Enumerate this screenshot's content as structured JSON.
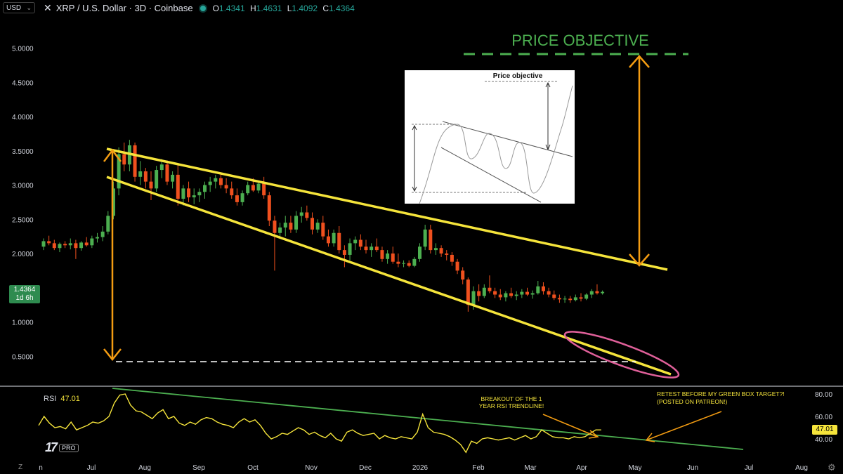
{
  "header": {
    "currency_label": "USD",
    "symbol_title": "XRP / U.S. Dollar · 3D · Coinbase",
    "ohlc": [
      {
        "k": "O",
        "v": "1.4341"
      },
      {
        "k": "H",
        "v": "1.4631"
      },
      {
        "k": "L",
        "v": "1.4092"
      },
      {
        "k": "C",
        "v": "1.4364"
      }
    ]
  },
  "price_tag": {
    "price": "1.4364",
    "countdown": "1d 6h"
  },
  "rsi": {
    "label": "RSI",
    "value": "47.01",
    "tag": "47.01"
  },
  "branding": {
    "pro_label": "PRO"
  },
  "colors": {
    "bull": "#26a69a",
    "bull_candle": "#4caf50",
    "bear_candle": "#f0501e",
    "wedge": "#f5e43b",
    "arrow": "#f39c12",
    "objective": "#4caf50",
    "ellipse": "#e0609a",
    "rsi_line": "#f5e43b",
    "rsi_trend": "#4caf50"
  },
  "chart_data": {
    "type": "candlestick",
    "title": "XRP / U.S. Dollar · 3D · Coinbase",
    "ylim": [
      0.3,
      5.4
    ],
    "y_ticks": [
      "5.0000",
      "4.5000",
      "4.0000",
      "3.5000",
      "3.0000",
      "2.5000",
      "2.0000",
      "1.0000",
      "0.5000"
    ],
    "y_tick_values": [
      5.0,
      4.5,
      4.0,
      3.5,
      3.0,
      2.5,
      2.0,
      1.0,
      0.5
    ],
    "x_ticks": [
      "n",
      "Jul",
      "Aug",
      "Sep",
      "Oct",
      "Nov",
      "Dec",
      "2026",
      "Feb",
      "Mar",
      "Apr",
      "May",
      "Jun",
      "Jul",
      "Aug"
    ],
    "candles": [
      [
        2.1,
        2.22,
        2.05,
        2.18
      ],
      [
        2.18,
        2.26,
        2.12,
        2.15
      ],
      [
        2.15,
        2.2,
        2.05,
        2.08
      ],
      [
        2.08,
        2.16,
        2.02,
        2.14
      ],
      [
        2.14,
        2.18,
        2.08,
        2.12
      ],
      [
        2.12,
        2.22,
        2.06,
        2.15
      ],
      [
        2.15,
        2.2,
        1.92,
        2.08
      ],
      [
        2.08,
        2.18,
        2.04,
        2.16
      ],
      [
        2.16,
        2.24,
        2.1,
        2.12
      ],
      [
        2.12,
        2.26,
        2.08,
        2.22
      ],
      [
        2.22,
        2.3,
        2.16,
        2.24
      ],
      [
        2.24,
        2.4,
        2.18,
        2.32
      ],
      [
        2.32,
        2.62,
        2.28,
        2.55
      ],
      [
        2.55,
        3.05,
        2.5,
        2.95
      ],
      [
        2.95,
        3.55,
        2.85,
        3.45
      ],
      [
        3.45,
        3.62,
        3.2,
        3.3
      ],
      [
        3.3,
        3.66,
        3.2,
        3.58
      ],
      [
        3.58,
        3.62,
        3.05,
        3.12
      ],
      [
        3.12,
        3.35,
        3.0,
        3.2
      ],
      [
        3.2,
        3.25,
        2.95,
        3.05
      ],
      [
        3.05,
        3.2,
        2.78,
        2.95
      ],
      [
        2.95,
        3.28,
        2.9,
        3.22
      ],
      [
        3.22,
        3.38,
        3.1,
        3.3
      ],
      [
        3.3,
        3.36,
        3.0,
        3.05
      ],
      [
        3.05,
        3.2,
        2.95,
        3.15
      ],
      [
        3.15,
        3.3,
        2.7,
        2.8
      ],
      [
        2.8,
        3.0,
        2.7,
        2.95
      ],
      [
        2.95,
        3.05,
        2.75,
        2.82
      ],
      [
        2.82,
        2.95,
        2.72,
        2.85
      ],
      [
        2.85,
        2.95,
        2.75,
        2.9
      ],
      [
        2.9,
        3.05,
        2.8,
        3.0
      ],
      [
        3.0,
        3.12,
        2.9,
        3.05
      ],
      [
        3.05,
        3.15,
        2.95,
        3.1
      ],
      [
        3.1,
        3.18,
        2.95,
        3.0
      ],
      [
        3.0,
        3.1,
        2.88,
        2.95
      ],
      [
        2.95,
        3.05,
        2.8,
        2.85
      ],
      [
        2.85,
        2.95,
        2.7,
        2.75
      ],
      [
        2.75,
        2.92,
        2.7,
        2.88
      ],
      [
        2.88,
        3.05,
        2.85,
        3.0
      ],
      [
        3.0,
        3.1,
        2.9,
        2.92
      ],
      [
        2.92,
        3.05,
        2.88,
        3.02
      ],
      [
        3.02,
        3.12,
        2.8,
        2.85
      ],
      [
        2.85,
        2.9,
        2.4,
        2.48
      ],
      [
        2.48,
        2.55,
        1.75,
        2.3
      ],
      [
        2.3,
        2.45,
        2.25,
        2.38
      ],
      [
        2.38,
        2.55,
        2.25,
        2.45
      ],
      [
        2.45,
        2.55,
        2.3,
        2.35
      ],
      [
        2.35,
        2.62,
        2.3,
        2.55
      ],
      [
        2.55,
        2.68,
        2.45,
        2.6
      ],
      [
        2.6,
        2.7,
        2.48,
        2.52
      ],
      [
        2.52,
        2.6,
        2.28,
        2.35
      ],
      [
        2.35,
        2.5,
        2.3,
        2.45
      ],
      [
        2.45,
        2.55,
        2.2,
        2.25
      ],
      [
        2.25,
        2.35,
        2.1,
        2.15
      ],
      [
        2.15,
        2.35,
        2.1,
        2.3
      ],
      [
        2.3,
        2.4,
        2.0,
        2.05
      ],
      [
        2.05,
        2.12,
        1.8,
        1.98
      ],
      [
        1.98,
        2.22,
        1.9,
        2.15
      ],
      [
        2.15,
        2.25,
        2.05,
        2.2
      ],
      [
        2.2,
        2.28,
        2.05,
        2.1
      ],
      [
        2.1,
        2.2,
        2.0,
        2.05
      ],
      [
        2.05,
        2.15,
        1.95,
        2.1
      ],
      [
        2.1,
        2.22,
        2.02,
        2.05
      ],
      [
        2.05,
        2.1,
        1.88,
        1.92
      ],
      [
        1.92,
        2.05,
        1.85,
        2.0
      ],
      [
        2.0,
        2.1,
        1.85,
        1.88
      ],
      [
        1.88,
        2.0,
        1.8,
        1.85
      ],
      [
        1.85,
        1.9,
        1.8,
        1.86
      ],
      [
        1.86,
        1.9,
        1.8,
        1.82
      ],
      [
        1.82,
        1.95,
        1.8,
        1.92
      ],
      [
        1.92,
        2.15,
        1.88,
        2.1
      ],
      [
        2.1,
        2.42,
        2.05,
        2.35
      ],
      [
        2.35,
        2.42,
        2.0,
        2.05
      ],
      [
        2.05,
        2.15,
        1.98,
        2.08
      ],
      [
        2.08,
        2.12,
        1.95,
        2.0
      ],
      [
        2.0,
        2.05,
        1.9,
        1.98
      ],
      [
        1.98,
        2.02,
        1.82,
        1.88
      ],
      [
        1.88,
        1.92,
        1.7,
        1.75
      ],
      [
        1.75,
        1.8,
        1.55,
        1.62
      ],
      [
        1.62,
        1.65,
        1.15,
        1.25
      ],
      [
        1.25,
        1.52,
        1.18,
        1.45
      ],
      [
        1.45,
        1.55,
        1.3,
        1.38
      ],
      [
        1.38,
        1.55,
        1.35,
        1.5
      ],
      [
        1.5,
        1.68,
        1.42,
        1.45
      ],
      [
        1.45,
        1.5,
        1.35,
        1.4
      ],
      [
        1.4,
        1.48,
        1.32,
        1.36
      ],
      [
        1.36,
        1.45,
        1.3,
        1.42
      ],
      [
        1.42,
        1.5,
        1.35,
        1.38
      ],
      [
        1.38,
        1.45,
        1.32,
        1.4
      ],
      [
        1.4,
        1.48,
        1.35,
        1.44
      ],
      [
        1.44,
        1.5,
        1.38,
        1.4
      ],
      [
        1.4,
        1.46,
        1.34,
        1.42
      ],
      [
        1.42,
        1.6,
        1.4,
        1.52
      ],
      [
        1.52,
        1.58,
        1.4,
        1.45
      ],
      [
        1.45,
        1.5,
        1.36,
        1.4
      ],
      [
        1.4,
        1.46,
        1.32,
        1.35
      ],
      [
        1.35,
        1.4,
        1.28,
        1.33
      ],
      [
        1.33,
        1.38,
        1.28,
        1.34
      ],
      [
        1.34,
        1.38,
        1.28,
        1.32
      ],
      [
        1.32,
        1.4,
        1.3,
        1.36
      ],
      [
        1.36,
        1.42,
        1.3,
        1.34
      ],
      [
        1.34,
        1.42,
        1.32,
        1.4
      ],
      [
        1.4,
        1.48,
        1.35,
        1.45
      ],
      [
        1.45,
        1.55,
        1.4,
        1.42
      ],
      [
        1.42,
        1.46,
        1.4,
        1.44
      ]
    ],
    "annotations": {
      "price_objective_label": "PRICE OBJECTIVE",
      "inset_title": "Price objective",
      "rsi_note_1": [
        "BREAKOUT OF THE 1",
        "YEAR RSI TRENDLINE!"
      ],
      "rsi_note_2": [
        "RETEST BEFORE MY GREEN BOX TARGET?!",
        "(POSTED ON PATREON!)"
      ]
    },
    "rsi_panel": {
      "ylim": [
        30,
        85
      ],
      "y_ticks": [
        "80.00",
        "60.00",
        "40.00"
      ],
      "y_tick_values": [
        80,
        60,
        40
      ],
      "values": [
        52,
        60,
        54,
        50,
        51,
        49,
        55,
        48,
        50,
        52,
        55,
        54,
        56,
        60,
        72,
        79,
        80,
        70,
        65,
        64,
        61,
        58,
        63,
        66,
        58,
        60,
        54,
        52,
        55,
        53,
        57,
        59,
        58,
        55,
        53,
        52,
        50,
        55,
        58,
        55,
        57,
        52,
        45,
        40,
        42,
        45,
        44,
        47,
        50,
        48,
        44,
        46,
        43,
        41,
        45,
        40,
        38,
        46,
        48,
        45,
        43,
        44,
        45,
        40,
        43,
        41,
        40,
        42,
        41,
        40,
        46,
        62,
        50,
        46,
        45,
        44,
        42,
        39,
        35,
        28,
        38,
        36,
        40,
        41,
        40,
        39,
        40,
        41,
        39,
        41,
        43,
        40,
        42,
        48,
        45,
        42,
        41,
        41,
        40,
        42,
        41,
        42,
        45,
        48,
        48
      ]
    }
  }
}
